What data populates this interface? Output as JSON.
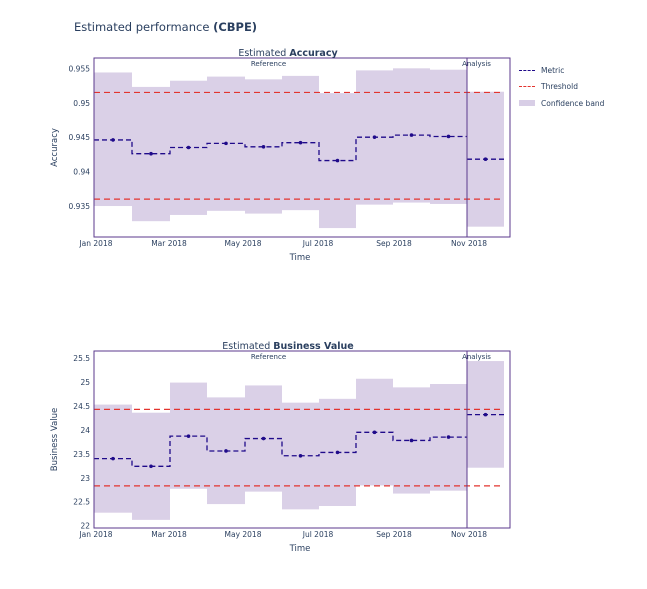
{
  "figure_title_prefix": "Estimated performance ",
  "figure_title_bold": "(CBPE)",
  "legend": [
    {
      "label": "Metric",
      "kind": "metric"
    },
    {
      "label": "Threshold",
      "kind": "threshold"
    },
    {
      "label": "Confidence band",
      "kind": "band"
    }
  ],
  "colors": {
    "metric": "#1f0a8a",
    "threshold": "#e3342f",
    "band": "#d8cee6",
    "axis": "#5b3a8c",
    "text": "#2a3f5f"
  },
  "chart_data": [
    {
      "type": "line",
      "title_prefix": "Estimated ",
      "title_bold": "Accuracy",
      "xlabel": "Time",
      "ylabel": "Accuracy",
      "ylim": [
        0.9305,
        0.9565
      ],
      "yticks": [
        0.935,
        0.94,
        0.945,
        0.95,
        0.955
      ],
      "ytick_labels": [
        "0.935",
        "0.94",
        "0.945",
        "0.95",
        "0.955"
      ],
      "xticks": [
        "Jan 2018",
        "Mar 2018",
        "May 2018",
        "Jul 2018",
        "Sep 2018",
        "Nov 2018"
      ],
      "period_labels": [
        "Reference",
        "Analysis"
      ],
      "thresholds": [
        0.9515,
        0.936
      ],
      "chunks": [
        {
          "value": 0.9446,
          "band": [
            0.935,
            0.9544
          ]
        },
        {
          "value": 0.9426,
          "band": [
            0.9328,
            0.9523
          ]
        },
        {
          "value": 0.9435,
          "band": [
            0.9337,
            0.9532
          ]
        },
        {
          "value": 0.9441,
          "band": [
            0.9343,
            0.9538
          ]
        },
        {
          "value": 0.9436,
          "band": [
            0.9339,
            0.9534
          ]
        },
        {
          "value": 0.9442,
          "band": [
            0.9344,
            0.9539
          ]
        },
        {
          "value": 0.9416,
          "band": [
            0.9318,
            0.9514
          ]
        },
        {
          "value": 0.945,
          "band": [
            0.9352,
            0.9547
          ]
        },
        {
          "value": 0.9453,
          "band": [
            0.9355,
            0.955
          ]
        },
        {
          "value": 0.9451,
          "band": [
            0.9353,
            0.9548
          ]
        },
        {
          "value": 0.9418,
          "band": [
            0.932,
            0.9516
          ]
        }
      ]
    },
    {
      "type": "line",
      "title_prefix": "Estimated ",
      "title_bold": "Business Value",
      "xlabel": "Time",
      "ylabel": "Business Value",
      "ylim": [
        21.95,
        25.65
      ],
      "yticks": [
        22,
        22.5,
        23,
        23.5,
        24,
        24.5,
        25,
        25.5
      ],
      "ytick_labels": [
        "22",
        "22.5",
        "23",
        "23.5",
        "24",
        "24.5",
        "25",
        "25.5"
      ],
      "xticks": [
        "Jan 2018",
        "Mar 2018",
        "May 2018",
        "Jul 2018",
        "Sep 2018",
        "Nov 2018"
      ],
      "period_labels": [
        "Reference",
        "Analysis"
      ],
      "thresholds": [
        24.43,
        22.83
      ],
      "chunks": [
        {
          "value": 23.4,
          "band": [
            22.27,
            24.53
          ]
        },
        {
          "value": 23.24,
          "band": [
            22.12,
            24.36
          ]
        },
        {
          "value": 23.87,
          "band": [
            22.77,
            24.99
          ]
        },
        {
          "value": 23.56,
          "band": [
            22.45,
            24.68
          ]
        },
        {
          "value": 23.82,
          "band": [
            22.71,
            24.93
          ]
        },
        {
          "value": 23.46,
          "band": [
            22.34,
            24.57
          ]
        },
        {
          "value": 23.53,
          "band": [
            22.41,
            24.65
          ]
        },
        {
          "value": 23.95,
          "band": [
            22.84,
            25.07
          ]
        },
        {
          "value": 23.78,
          "band": [
            22.67,
            24.89
          ]
        },
        {
          "value": 23.85,
          "band": [
            22.73,
            24.96
          ]
        },
        {
          "value": 24.32,
          "band": [
            23.21,
            25.44
          ]
        }
      ]
    }
  ]
}
